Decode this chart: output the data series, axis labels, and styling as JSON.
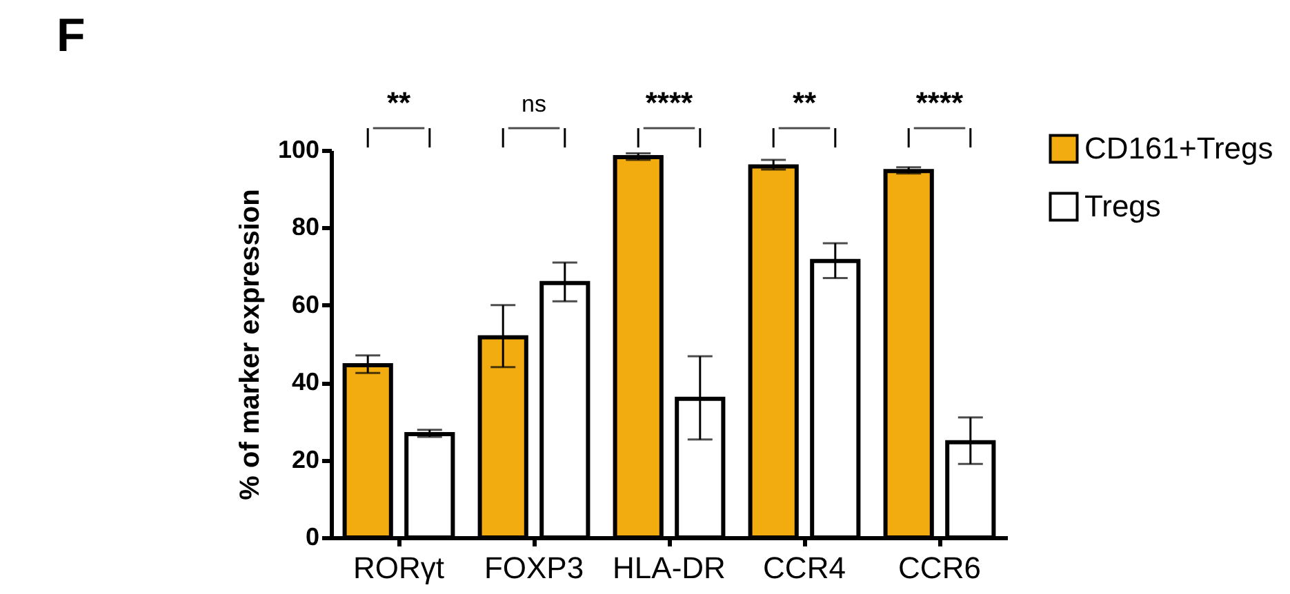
{
  "chart_data": {
    "type": "bar",
    "title": "F",
    "ylabel": "% of marker expression",
    "categories": [
      "RORγt",
      "FOXP3",
      "HLA-DR",
      "CCR4",
      "CCR6"
    ],
    "series": [
      {
        "name": "CD161+Tregs",
        "color": "#f2ac0f",
        "values": [
          44.5,
          51.7,
          98.2,
          95.8,
          94.6
        ],
        "errors": [
          [
            42.5,
            47
          ],
          [
            44,
            60
          ],
          [
            97.5,
            99.2
          ],
          [
            95,
            97.5
          ],
          [
            94,
            95.6
          ]
        ]
      },
      {
        "name": "Tregs",
        "color": "#ffffff",
        "values": [
          26.7,
          65.7,
          35.8,
          71.4,
          24.6
        ],
        "errors": [
          [
            26,
            27.8
          ],
          [
            61,
            71
          ],
          [
            25.3,
            46.8
          ],
          [
            67,
            76
          ],
          [
            19,
            31
          ]
        ]
      }
    ],
    "ylim": [
      0,
      100
    ],
    "yticks": [
      0,
      20,
      40,
      60,
      80,
      100
    ],
    "grid": false,
    "legend": "right",
    "annotations": [
      "**",
      "ns",
      "****",
      "**",
      "****"
    ]
  }
}
